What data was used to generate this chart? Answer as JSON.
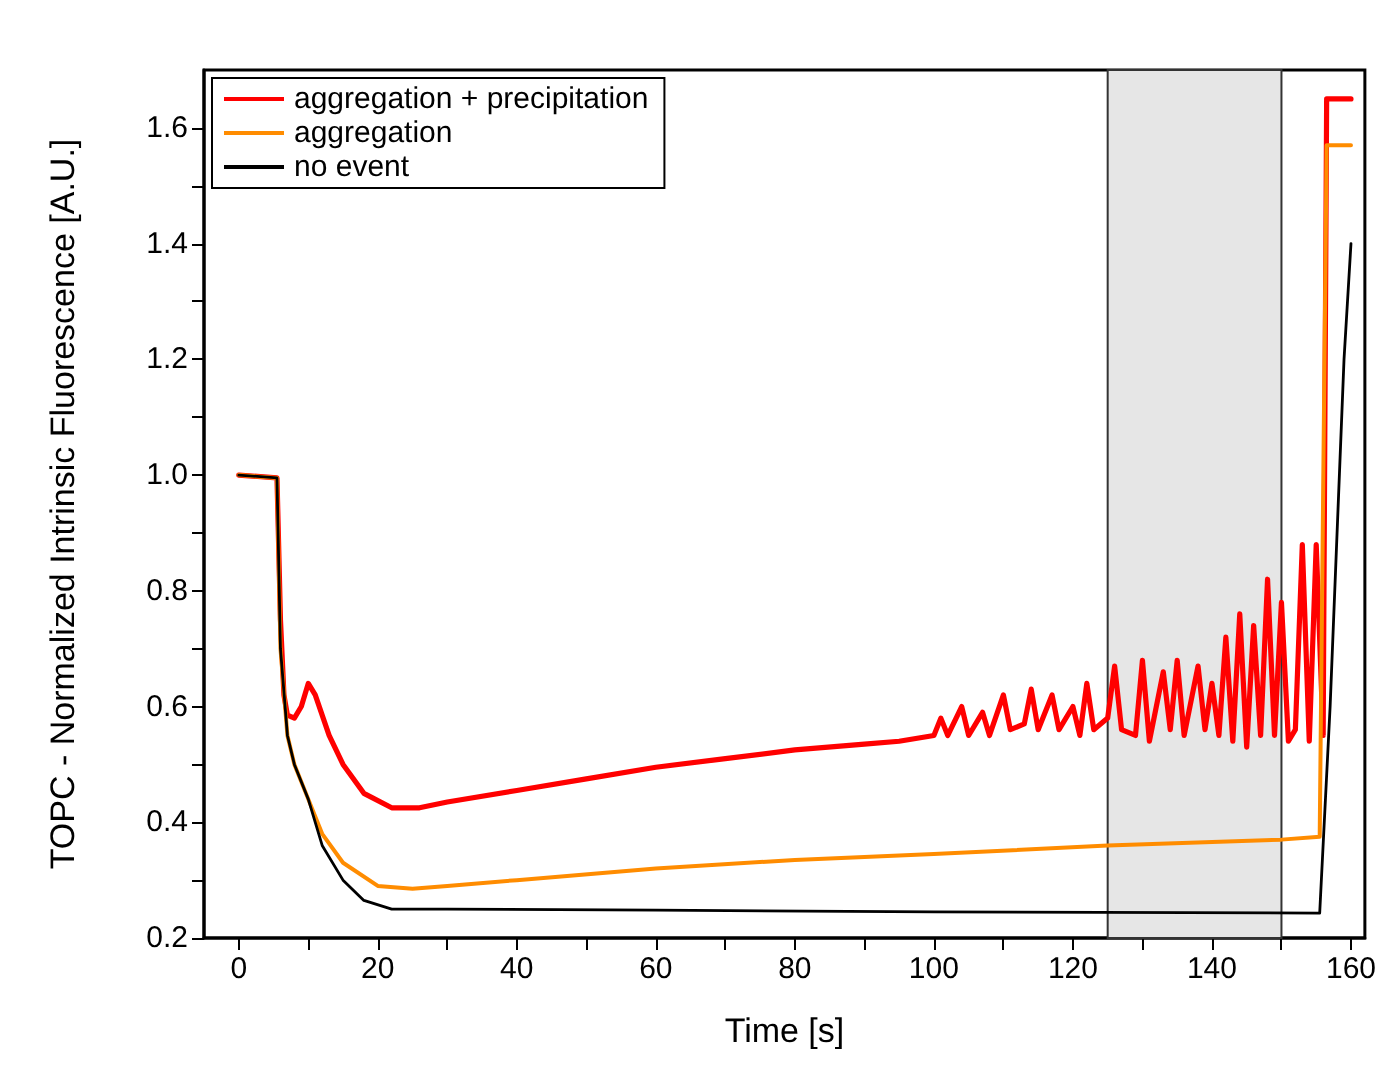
{
  "chart_data": {
    "type": "line",
    "xlabel": "Time [s]",
    "ylabel": "TOPC - Normalized Intrinsic Fluorescence [A.U.]",
    "xlim": [
      -5,
      162
    ],
    "ylim": [
      0.2,
      1.7
    ],
    "xticks": [
      0,
      {
        "value": 10,
        "label": null
      },
      20,
      {
        "value": 30,
        "label": null
      },
      40,
      {
        "value": 50,
        "label": null
      },
      60,
      {
        "value": 70,
        "label": null
      },
      80,
      {
        "value": 90,
        "label": null
      },
      100,
      {
        "value": 110,
        "label": null
      },
      120,
      {
        "value": 130,
        "label": null
      },
      140,
      {
        "value": 150,
        "label": null
      },
      160
    ],
    "yticks": [
      {
        "value": 0.2,
        "label": "0.2"
      },
      {
        "value": 0.3,
        "label": null
      },
      {
        "value": 0.4,
        "label": "0.4"
      },
      {
        "value": 0.5,
        "label": null
      },
      {
        "value": 0.6,
        "label": "0.6"
      },
      {
        "value": 0.7,
        "label": null
      },
      {
        "value": 0.8,
        "label": "0.8"
      },
      {
        "value": 0.9,
        "label": null
      },
      {
        "value": 1.0,
        "label": "1.0"
      },
      {
        "value": 1.1,
        "label": null
      },
      {
        "value": 1.2,
        "label": "1.2"
      },
      {
        "value": 1.3,
        "label": null
      },
      {
        "value": 1.4,
        "label": "1.4"
      },
      {
        "value": 1.5,
        "label": null
      },
      {
        "value": 1.6,
        "label": "1.6"
      }
    ],
    "grid": false,
    "legend": "top left",
    "marker": "none",
    "line_style": "solid",
    "bands": [
      {
        "axis": "x",
        "from": 125,
        "to": 150,
        "color": "#e6e6e6"
      }
    ],
    "series": [
      {
        "name": "aggregation + precipitation",
        "color": "#ff0000",
        "x": [
          0,
          5.5,
          6,
          6.5,
          7,
          8,
          9,
          10,
          11,
          13,
          15,
          18,
          22,
          26,
          30,
          40,
          50,
          60,
          70,
          80,
          90,
          95,
          100,
          101,
          102,
          104,
          105,
          107,
          108,
          110,
          111,
          113,
          114,
          115,
          117,
          118,
          120,
          121,
          122,
          123,
          125,
          126,
          127,
          129,
          130,
          131,
          133,
          134,
          135,
          136,
          138,
          139,
          140,
          141,
          142,
          143,
          144,
          145,
          146,
          147,
          148,
          149,
          150,
          151,
          152,
          153,
          154,
          155,
          156,
          156.5,
          160
        ],
        "values": [
          1.0,
          0.995,
          0.75,
          0.62,
          0.585,
          0.58,
          0.6,
          0.64,
          0.62,
          0.55,
          0.5,
          0.45,
          0.425,
          0.425,
          0.435,
          0.455,
          0.475,
          0.495,
          0.51,
          0.525,
          0.535,
          0.54,
          0.55,
          0.58,
          0.55,
          0.6,
          0.55,
          0.59,
          0.55,
          0.62,
          0.56,
          0.57,
          0.63,
          0.56,
          0.62,
          0.56,
          0.6,
          0.55,
          0.64,
          0.56,
          0.58,
          0.67,
          0.56,
          0.55,
          0.68,
          0.54,
          0.66,
          0.56,
          0.68,
          0.55,
          0.67,
          0.56,
          0.64,
          0.55,
          0.72,
          0.54,
          0.76,
          0.53,
          0.74,
          0.55,
          0.82,
          0.55,
          0.78,
          0.54,
          0.56,
          0.88,
          0.54,
          0.88,
          0.55,
          1.65,
          1.65
        ]
      },
      {
        "name": "aggregation",
        "color": "#ff8c00",
        "x": [
          0,
          5.5,
          6,
          7,
          8,
          10,
          12,
          15,
          20,
          25,
          30,
          40,
          60,
          80,
          100,
          125,
          150,
          155.5,
          156.5,
          160
        ],
        "values": [
          1.0,
          0.995,
          0.7,
          0.55,
          0.5,
          0.44,
          0.38,
          0.33,
          0.29,
          0.285,
          0.29,
          0.3,
          0.32,
          0.335,
          0.345,
          0.36,
          0.37,
          0.375,
          1.57,
          1.57
        ]
      },
      {
        "name": "no event",
        "color": "#000000",
        "x": [
          0,
          5.5,
          6,
          7,
          8,
          10,
          12,
          15,
          18,
          22,
          30,
          60,
          100,
          155.5,
          157,
          159,
          160
        ],
        "values": [
          1.0,
          0.995,
          0.7,
          0.55,
          0.5,
          0.44,
          0.36,
          0.3,
          0.265,
          0.25,
          0.25,
          0.248,
          0.245,
          0.243,
          0.6,
          1.2,
          1.4
        ]
      }
    ]
  }
}
